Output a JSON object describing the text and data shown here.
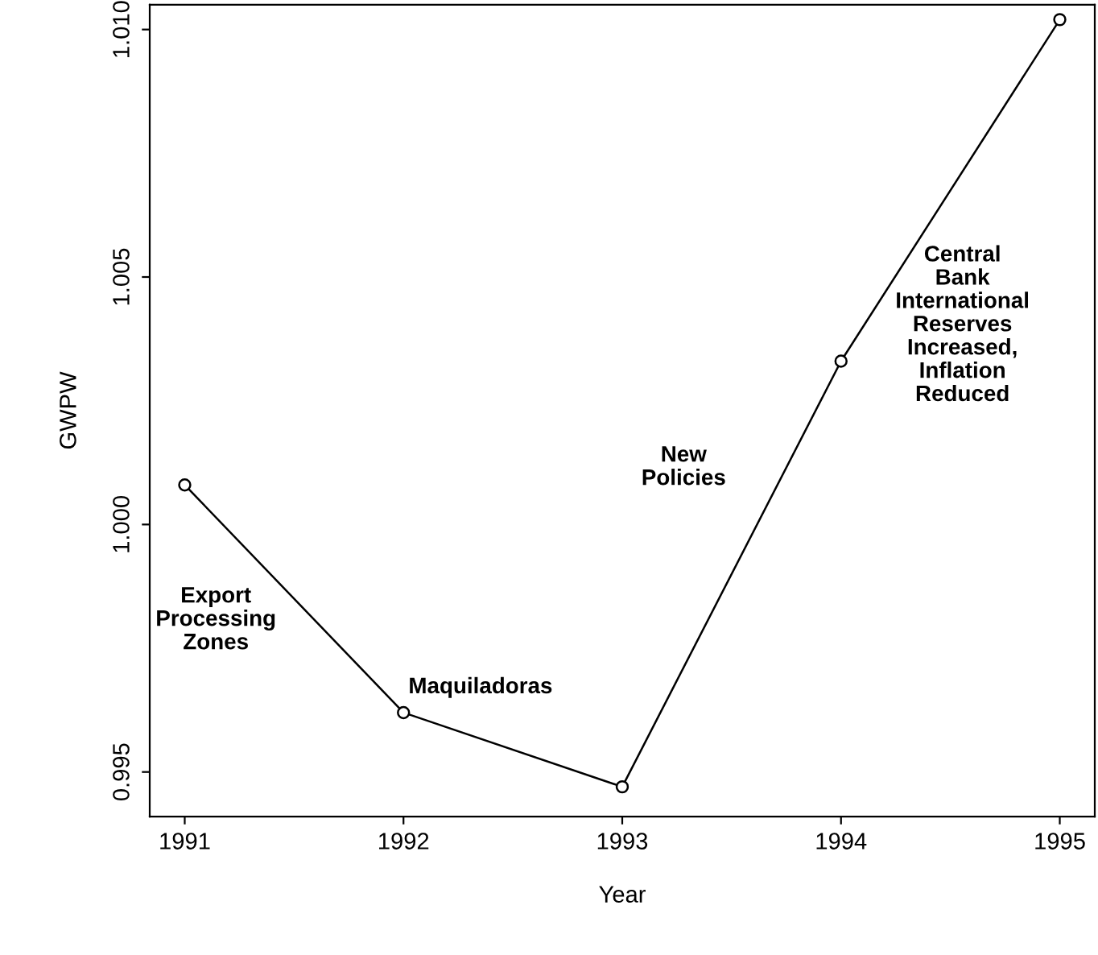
{
  "chart_data": {
    "type": "line",
    "xlabel": "Year",
    "ylabel": "GWPW",
    "x": [
      1991,
      1992,
      1993,
      1994,
      1995
    ],
    "series": [
      {
        "color": "#000000",
        "values": [
          1.0008,
          0.9962,
          0.9947,
          1.0033,
          1.0102
        ]
      }
    ],
    "xlim": [
      1990.84,
      1995.16
    ],
    "xticks": [
      1991,
      1992,
      1993,
      1994,
      1995
    ],
    "ylim": [
      0.9941,
      1.0105
    ],
    "yticks": [
      {
        "value": 0.995,
        "label": "0.995"
      },
      {
        "value": 1.0,
        "label": "1.000"
      },
      {
        "value": 1.005,
        "label": "1.005"
      },
      {
        "value": 1.01,
        "label": "1.010"
      }
    ],
    "marker": "circle",
    "line_style": "solid",
    "grid": false,
    "legend": false,
    "annotations": [
      "Export\nProcessing\nZones",
      "Maquiladoras",
      "New\nPolicies",
      "Central\nBank\nInternational\nReserves\nIncreased,\nInflation\nReduced"
    ]
  }
}
